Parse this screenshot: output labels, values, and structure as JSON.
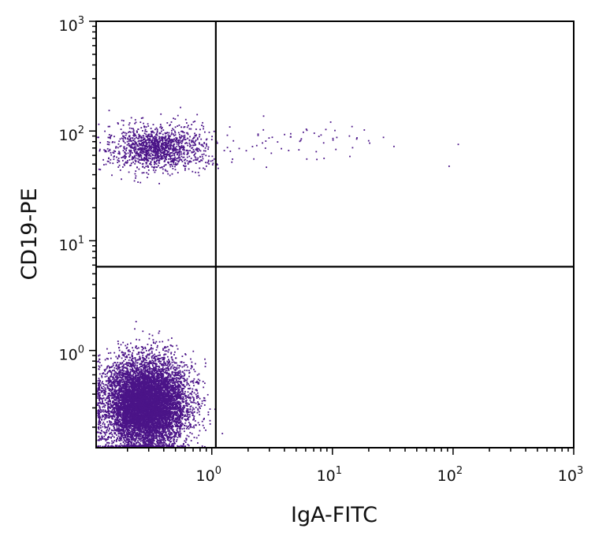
{
  "chart_data": {
    "type": "scatter",
    "xlabel": "IgA-FITC",
    "ylabel": "CD19-PE",
    "xscale": "log",
    "yscale": "log",
    "xlim": [
      0.11,
      1000
    ],
    "ylim": [
      0.13,
      1000
    ],
    "x_ticks": [
      {
        "base": "10",
        "exp": "0"
      },
      {
        "base": "10",
        "exp": "1"
      },
      {
        "base": "10",
        "exp": "2"
      },
      {
        "base": "10",
        "exp": "3"
      }
    ],
    "y_ticks": [
      {
        "base": "10",
        "exp": "0"
      },
      {
        "base": "10",
        "exp": "1"
      },
      {
        "base": "10",
        "exp": "2"
      },
      {
        "base": "10",
        "exp": "3"
      }
    ],
    "point_color": "#4b1488",
    "quadrant_gates": {
      "x": 1.08,
      "y": 5.8
    },
    "populations": [
      {
        "label": "CD19-negative, IgA-negative",
        "center": {
          "x": 0.28,
          "y": 0.33
        },
        "log_spread": {
          "x": 0.17,
          "y": 0.2
        },
        "count": 9000
      },
      {
        "label": "CD19-positive, IgA-negative",
        "center": {
          "x": 0.36,
          "y": 70
        },
        "log_spread": {
          "x": 0.2,
          "y": 0.1
        },
        "count": 1400
      },
      {
        "label": "CD19-positive, IgA-positive",
        "center": {
          "x": 6,
          "y": 80
        },
        "log_spread": {
          "x": 0.45,
          "y": 0.1
        },
        "count": 60
      }
    ]
  }
}
